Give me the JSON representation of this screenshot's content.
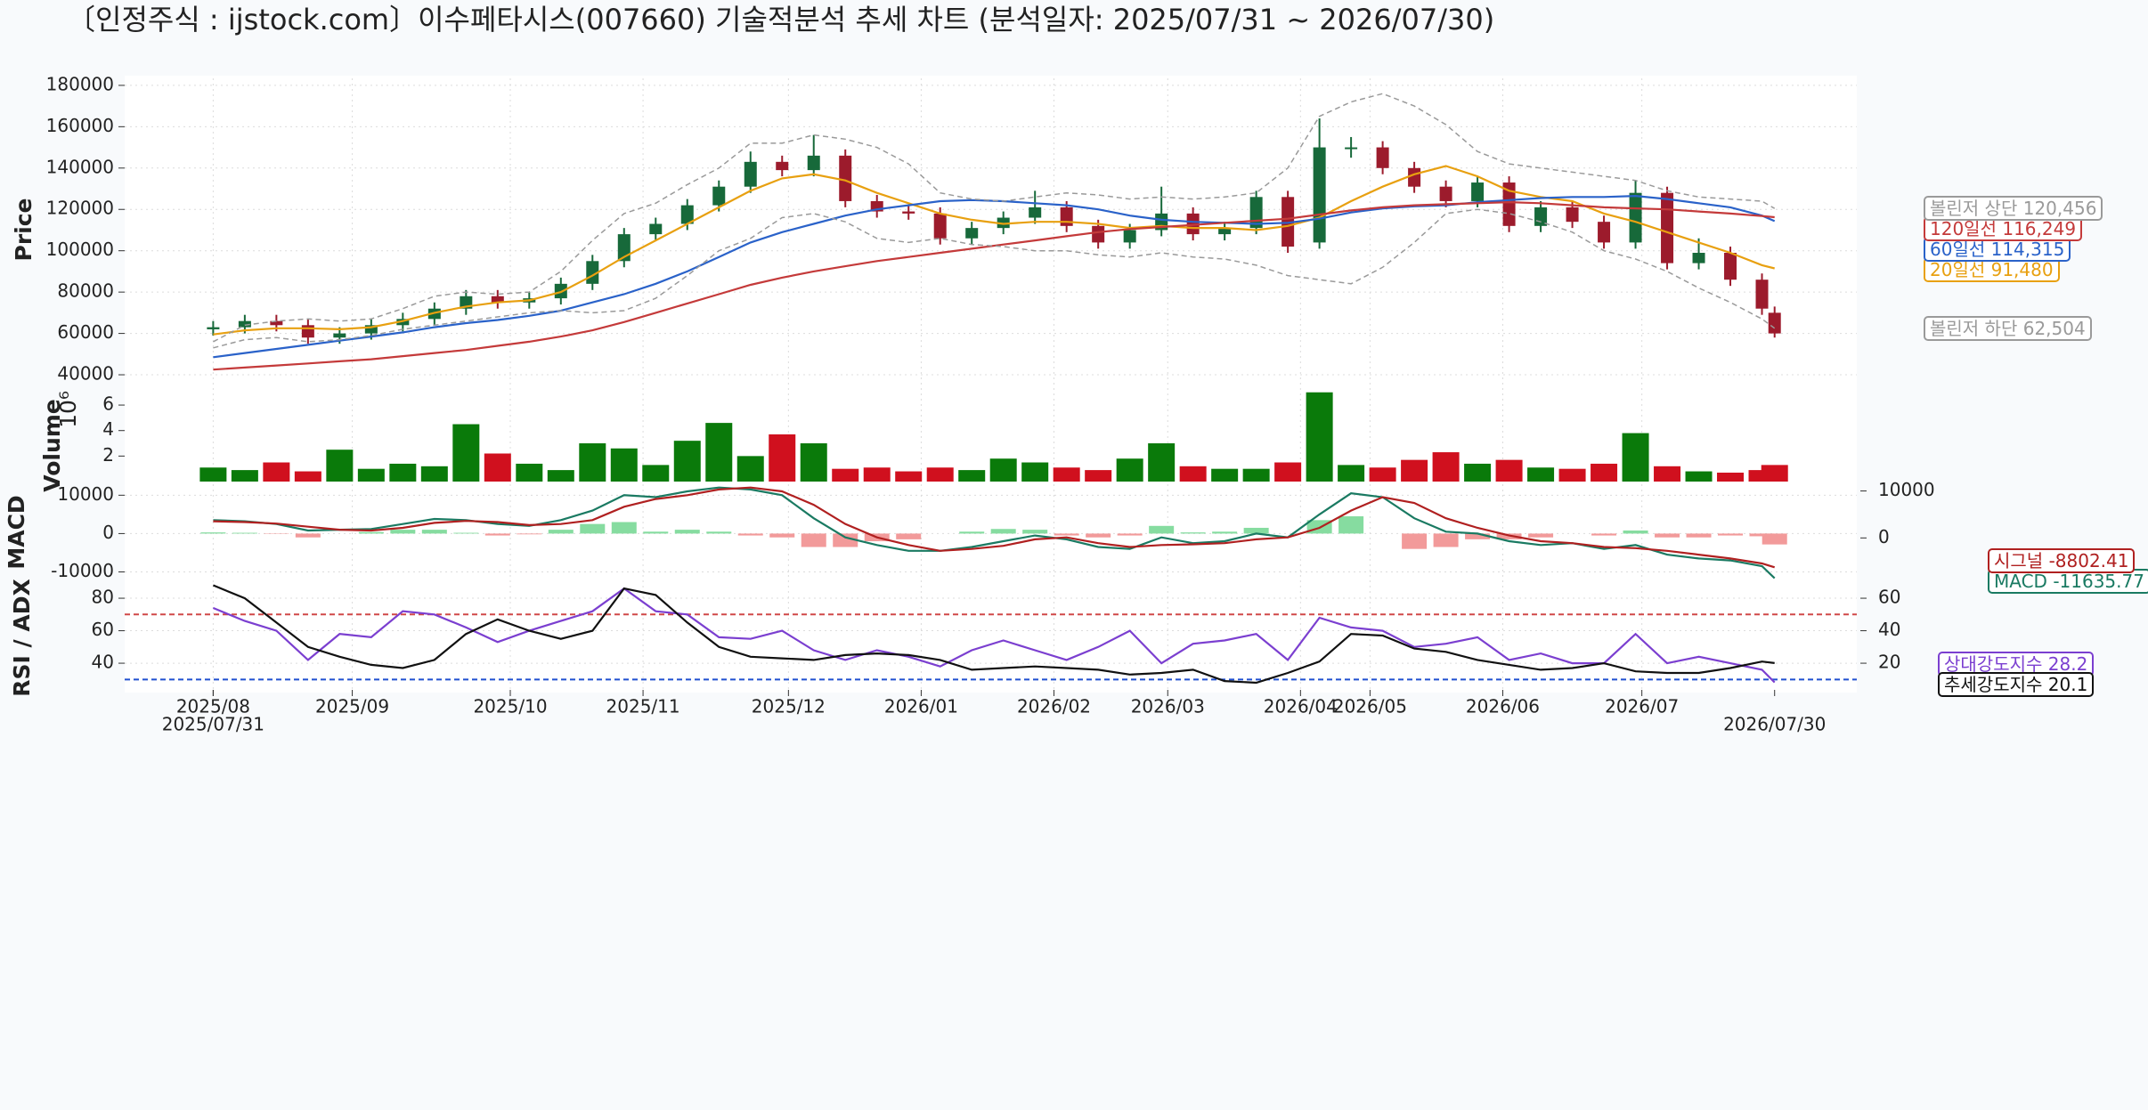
{
  "chart_data": [
    {
      "type": "candlestick",
      "title": "〔인정주식 : ijstock.com〕이수페타시스(007660) 기술적분석 추세 차트 (분석일자: 2025/07/31 ~ 2026/07/30)",
      "ylabel": "Price",
      "x": [
        0,
        5,
        10,
        15,
        20,
        25,
        30,
        35,
        40,
        45,
        50,
        55,
        60,
        65,
        70,
        75,
        80,
        85,
        90,
        95,
        100,
        105,
        110,
        115,
        120,
        125,
        130,
        135,
        140,
        145,
        150,
        155,
        160,
        165,
        170,
        175,
        180,
        185,
        190,
        195,
        200,
        205,
        210,
        215,
        220,
        225,
        230,
        235,
        240,
        245,
        247
      ],
      "xlim": [
        -14,
        260
      ],
      "xticks": [
        {
          "value": 0,
          "label": "2025/08"
        },
        {
          "value": 22,
          "label": "2025/09"
        },
        {
          "value": 47,
          "label": "2025/10"
        },
        {
          "value": 68,
          "label": "2025/11"
        },
        {
          "value": 91,
          "label": "2025/12"
        },
        {
          "value": 112,
          "label": "2026/01"
        },
        {
          "value": 133,
          "label": "2026/02"
        },
        {
          "value": 151,
          "label": "2026/03"
        },
        {
          "value": 172,
          "label": "2026/04"
        },
        {
          "value": 183,
          "label": "2026/05"
        },
        {
          "value": 204,
          "label": "2026/06"
        },
        {
          "value": 226,
          "label": "2026/07"
        }
      ],
      "xticks_extra": [
        {
          "value": 0,
          "label": "2025/07/31"
        },
        {
          "value": 247,
          "label": "2026/07/30"
        }
      ],
      "ylim": [
        37000,
        183400
      ],
      "yticks": [
        40000,
        60000,
        80000,
        100000,
        120000,
        140000,
        160000,
        180000
      ],
      "grid": true,
      "up_color": "#17693a",
      "down_color": "#9c1b2c",
      "open": [
        62000,
        63000,
        66000,
        64000,
        58000,
        60000,
        64000,
        67000,
        72000,
        78000,
        75000,
        77000,
        84000,
        95000,
        108000,
        113000,
        122000,
        131000,
        143000,
        139000,
        146000,
        124000,
        119000,
        118000,
        106000,
        111000,
        116000,
        121000,
        112000,
        104000,
        110000,
        118000,
        108000,
        111000,
        126000,
        104000,
        150000,
        150000,
        140000,
        131000,
        124000,
        133000,
        112000,
        121000,
        114000,
        104000,
        128000,
        94000,
        99000,
        86000,
        70000
      ],
      "high": [
        66000,
        69000,
        69000,
        67000,
        63000,
        67000,
        70000,
        75000,
        81000,
        81000,
        80000,
        87000,
        98000,
        111000,
        116000,
        125000,
        134000,
        148000,
        146000,
        156000,
        149000,
        127000,
        122000,
        121000,
        114000,
        119000,
        129000,
        124000,
        115000,
        113000,
        131000,
        121000,
        114000,
        129000,
        129000,
        164000,
        155000,
        153000,
        143000,
        134000,
        136000,
        136000,
        124000,
        124000,
        117000,
        134000,
        131000,
        106000,
        102000,
        89000,
        73000
      ],
      "low": [
        59000,
        60000,
        61000,
        55000,
        55000,
        57000,
        61000,
        64000,
        69000,
        72000,
        72000,
        74000,
        81000,
        92000,
        105000,
        110000,
        119000,
        128000,
        136000,
        136000,
        121000,
        116000,
        115000,
        103000,
        103000,
        108000,
        113000,
        109000,
        101000,
        101000,
        107000,
        105000,
        105000,
        108000,
        99000,
        101000,
        145000,
        137000,
        128000,
        121000,
        121000,
        109000,
        109000,
        111000,
        101000,
        101000,
        91000,
        91000,
        83000,
        69000,
        58000
      ],
      "close": [
        63000,
        66000,
        64000,
        58000,
        60000,
        64000,
        67000,
        72000,
        78000,
        75000,
        77000,
        84000,
        95000,
        108000,
        113000,
        122000,
        131000,
        143000,
        139000,
        146000,
        124000,
        119000,
        118000,
        106000,
        111000,
        116000,
        121000,
        112000,
        104000,
        110000,
        118000,
        108000,
        111000,
        126000,
        102000,
        150000,
        150000,
        140000,
        131000,
        124000,
        133000,
        112000,
        121000,
        114000,
        104000,
        128000,
        94000,
        99000,
        86000,
        72000,
        60000
      ],
      "series": [
        {
          "name": "20일선",
          "color": "#e8a010",
          "end_label": "91,480",
          "values": [
            59500,
            61500,
            62500,
            62500,
            62000,
            63000,
            66000,
            70000,
            73000,
            75000,
            76000,
            80000,
            88000,
            97000,
            105000,
            113000,
            121000,
            129000,
            135000,
            137000,
            134000,
            128000,
            123000,
            118000,
            115000,
            113000,
            114000,
            114000,
            113000,
            111000,
            112000,
            111000,
            111000,
            110000,
            112000,
            116000,
            124000,
            131000,
            137000,
            141000,
            136000,
            129000,
            126000,
            124000,
            118000,
            114000,
            109000,
            104000,
            99000,
            93000,
            91480
          ]
        },
        {
          "name": "60일선",
          "color": "#2a62c9",
          "end_label": "114,315",
          "values": [
            48500,
            50500,
            52500,
            54500,
            56500,
            58500,
            60500,
            63000,
            65000,
            66500,
            68500,
            71000,
            75000,
            79000,
            84000,
            90000,
            97000,
            104000,
            109000,
            113000,
            117000,
            120000,
            122000,
            124000,
            124500,
            124000,
            123000,
            122000,
            120000,
            117000,
            115000,
            114000,
            113500,
            113000,
            113500,
            115500,
            118500,
            120500,
            121500,
            122000,
            123500,
            124500,
            125500,
            126000,
            126000,
            126500,
            125000,
            123000,
            121000,
            117000,
            114315
          ]
        },
        {
          "name": "120일선",
          "color": "#c43a3a",
          "end_label": "116,249",
          "values": [
            42500,
            43500,
            44500,
            45500,
            46500,
            47500,
            49000,
            50500,
            52000,
            54000,
            56000,
            58500,
            61500,
            65500,
            70000,
            74500,
            79000,
            83500,
            87000,
            90000,
            92500,
            95000,
            97000,
            99000,
            101000,
            103000,
            105000,
            107000,
            109000,
            110500,
            111500,
            112500,
            113500,
            114500,
            115500,
            117500,
            119500,
            121000,
            122000,
            122500,
            123000,
            123500,
            123000,
            122000,
            121000,
            120500,
            120000,
            119000,
            118000,
            116800,
            116249
          ]
        },
        {
          "name": "볼린저 상단",
          "color": "#9a9a9a",
          "dashed": true,
          "end_label": "120,456",
          "values": [
            56000,
            64000,
            66000,
            67000,
            66000,
            67000,
            72000,
            78000,
            80000,
            79000,
            80000,
            90000,
            105000,
            118000,
            123000,
            132000,
            140000,
            152000,
            152000,
            156000,
            154000,
            150000,
            142000,
            128000,
            125000,
            124000,
            126000,
            128000,
            127000,
            125000,
            126000,
            125000,
            126000,
            128000,
            140000,
            165000,
            172000,
            176000,
            170000,
            161000,
            148000,
            142000,
            140000,
            138000,
            136000,
            134000,
            129000,
            126000,
            125000,
            124000,
            120456
          ]
        },
        {
          "name": "볼린저 하단",
          "color": "#9a9a9a",
          "dashed": true,
          "end_label": "62,504",
          "values": [
            53000,
            57000,
            58000,
            56000,
            57000,
            59000,
            62000,
            64000,
            66000,
            68000,
            70000,
            71000,
            70000,
            71000,
            77000,
            88000,
            100000,
            106000,
            116000,
            118000,
            114000,
            106000,
            104000,
            106000,
            103000,
            102000,
            100000,
            100000,
            98000,
            97000,
            99000,
            97000,
            96000,
            93000,
            88000,
            86000,
            84000,
            92000,
            104000,
            118000,
            120000,
            118000,
            114000,
            109000,
            100000,
            96000,
            90000,
            82000,
            75000,
            67000,
            62504
          ]
        }
      ]
    },
    {
      "type": "bar",
      "ylabel": "Volume",
      "offset_label": "10⁶",
      "ylim": [
        0,
        7.75
      ],
      "yticks": [
        2,
        4,
        6
      ],
      "up_color": "#0a7a0a",
      "down_color": "#d0101e",
      "values": [
        1.1,
        0.9,
        1.5,
        0.8,
        2.5,
        1,
        1.4,
        1.2,
        4.5,
        2.2,
        1.4,
        0.9,
        3,
        2.6,
        1.3,
        3.2,
        4.6,
        2,
        3.7,
        3,
        1,
        1.1,
        0.8,
        1.1,
        0.9,
        1.8,
        1.5,
        1.1,
        0.9,
        1.8,
        3,
        1.2,
        1,
        1,
        1.5,
        7,
        1.3,
        1.1,
        1.7,
        2.3,
        1.4,
        1.7,
        1.1,
        1,
        1.4,
        3.8,
        1.2,
        0.8,
        0.7,
        0.9,
        1.3
      ]
    },
    {
      "type": "line",
      "ylabel": "MACD",
      "ylim": [
        -12900,
        13560
      ],
      "yticks": [
        -10000,
        0,
        10000
      ],
      "y2lim": [
        -9600,
        12000
      ],
      "y2ticks": [
        0,
        10000
      ],
      "grid": true,
      "series": [
        {
          "name": "MACD",
          "color": "#1a7a62",
          "values": [
            3500,
            3200,
            2500,
            800,
            1000,
            1200,
            2500,
            3800,
            3500,
            2500,
            2000,
            3500,
            6000,
            10000,
            9500,
            11000,
            12000,
            11500,
            10000,
            4000,
            -1000,
            -3000,
            -4500,
            -4500,
            -3500,
            -2000,
            -500,
            -1500,
            -3500,
            -4000,
            -1000,
            -2500,
            -2000,
            0,
            -1000,
            5000,
            10500,
            9500,
            4000,
            500,
            0,
            -2000,
            -3000,
            -2500,
            -4000,
            -3000,
            -5500,
            -6500,
            -7000,
            -8500,
            -11635.77
          ]
        },
        {
          "name": "시그널",
          "color": "#b02020",
          "values": [
            3200,
            3000,
            2600,
            1800,
            1000,
            800,
            1500,
            2800,
            3300,
            3000,
            2200,
            2500,
            3500,
            7000,
            9000,
            10000,
            11500,
            12000,
            11000,
            7500,
            2500,
            -1000,
            -3000,
            -4500,
            -4000,
            -3200,
            -1500,
            -1000,
            -2500,
            -3500,
            -3000,
            -2800,
            -2500,
            -1500,
            -1000,
            1500,
            6000,
            9500,
            8000,
            4000,
            1500,
            -500,
            -2000,
            -2500,
            -3500,
            -3800,
            -4500,
            -5500,
            -6500,
            -7800,
            -8802.41
          ]
        },
        {
          "kind": "bar",
          "color": "#86dca0",
          "negative_color": "#f29a9a",
          "values": [
            300,
            200,
            -100,
            -1000,
            0,
            400,
            1000,
            1000,
            200,
            -500,
            -200,
            1000,
            2500,
            3000,
            500,
            1000,
            500,
            -500,
            -1000,
            -3500,
            -3500,
            -2000,
            -1500,
            0,
            500,
            1200,
            1000,
            -500,
            -1000,
            -500,
            2000,
            300,
            500,
            1500,
            0,
            3500,
            4500,
            0,
            -4000,
            -3500,
            -1500,
            -1500,
            -1000,
            0,
            -500,
            800,
            -1000,
            -1000,
            -500,
            -700,
            -2834
          ]
        }
      ]
    },
    {
      "type": "line",
      "ylabel": "RSI / ADX",
      "ylim": [
        23.6,
        87.7
      ],
      "yticks": [
        40,
        60,
        80
      ],
      "y2lim": [
        3.6,
        67.7
      ],
      "y2ticks": [
        20,
        40,
        60
      ],
      "grid": true,
      "reference_lines": [
        {
          "value": 70,
          "color": "#d04848"
        },
        {
          "value": 30,
          "color": "#2050d0"
        }
      ],
      "series": [
        {
          "name": "상대강도지수",
          "color": "#7b3fd0",
          "values": [
            74,
            66,
            60,
            42,
            58,
            56,
            72,
            70,
            62,
            53,
            60,
            66,
            72,
            86,
            72,
            70,
            56,
            55,
            60,
            48,
            42,
            48,
            44,
            38,
            48,
            54,
            48,
            42,
            50,
            60,
            40,
            52,
            54,
            58,
            42,
            68,
            62,
            60,
            50,
            52,
            56,
            42,
            46,
            40,
            40,
            58,
            40,
            44,
            40,
            36,
            28.2
          ]
        },
        {
          "name": "추세강도지수",
          "color": "#111111",
          "axis": "y2",
          "values": [
            68,
            60,
            45,
            30,
            24,
            19,
            17,
            22,
            38,
            47,
            40,
            35,
            40,
            66,
            62,
            45,
            30,
            24,
            23,
            22,
            25,
            26,
            25,
            22,
            16,
            17,
            18,
            17,
            16,
            13,
            14,
            16,
            9,
            8,
            14,
            21,
            38,
            37,
            29,
            27,
            22,
            19,
            16,
            17,
            20,
            15,
            14,
            14,
            17,
            21,
            20.1
          ]
        }
      ]
    }
  ]
}
